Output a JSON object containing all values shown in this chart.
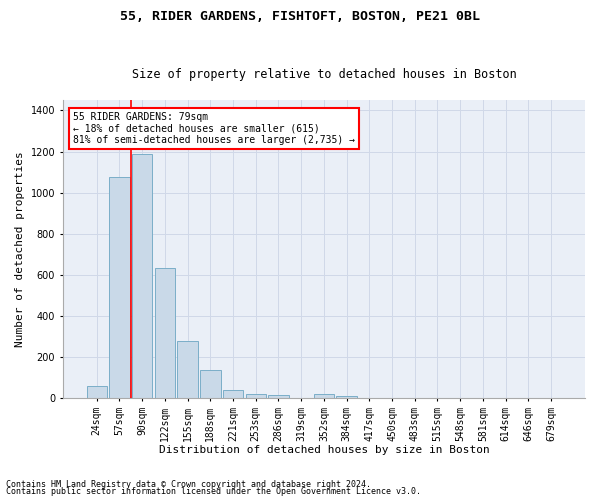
{
  "title1": "55, RIDER GARDENS, FISHTOFT, BOSTON, PE21 0BL",
  "title2": "Size of property relative to detached houses in Boston",
  "xlabel": "Distribution of detached houses by size in Boston",
  "ylabel": "Number of detached properties",
  "footnote1": "Contains HM Land Registry data © Crown copyright and database right 2024.",
  "footnote2": "Contains public sector information licensed under the Open Government Licence v3.0.",
  "bin_labels": [
    "24sqm",
    "57sqm",
    "90sqm",
    "122sqm",
    "155sqm",
    "188sqm",
    "221sqm",
    "253sqm",
    "286sqm",
    "319sqm",
    "352sqm",
    "384sqm",
    "417sqm",
    "450sqm",
    "483sqm",
    "515sqm",
    "548sqm",
    "581sqm",
    "614sqm",
    "646sqm",
    "679sqm"
  ],
  "bar_values": [
    60,
    1075,
    1190,
    635,
    275,
    135,
    40,
    20,
    15,
    0,
    20,
    10,
    0,
    0,
    0,
    0,
    0,
    0,
    0,
    0,
    0
  ],
  "bar_color": "#c9d9e8",
  "bar_edge_color": "#7baec8",
  "annotation_text": "55 RIDER GARDENS: 79sqm\n← 18% of detached houses are smaller (615)\n81% of semi-detached houses are larger (2,735) →",
  "annotation_box_color": "white",
  "annotation_box_edge_color": "red",
  "red_line_x": 1.5,
  "ylim": [
    0,
    1450
  ],
  "yticks": [
    0,
    200,
    400,
    600,
    800,
    1000,
    1200,
    1400
  ],
  "grid_color": "#d0d8e8",
  "background_color": "#eaeff7",
  "title1_fontsize": 9.5,
  "title2_fontsize": 8.5,
  "axis_label_fontsize": 8,
  "tick_fontsize": 7,
  "annotation_fontsize": 7,
  "footnote_fontsize": 6
}
